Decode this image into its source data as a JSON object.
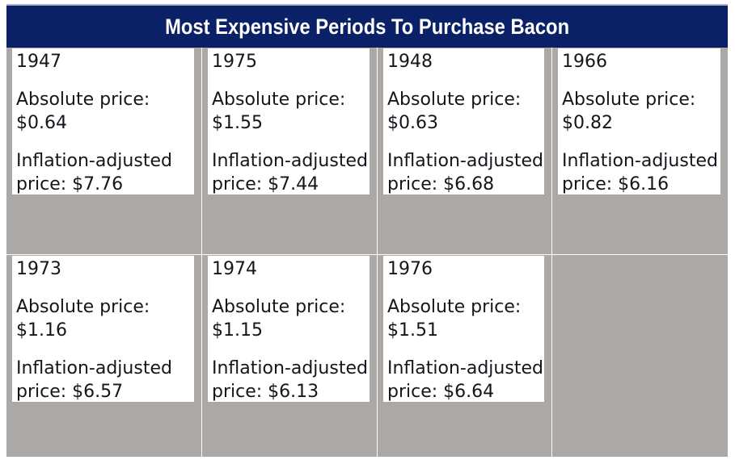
{
  "title": "Most Expensive Periods To Purchase Bacon",
  "colors": {
    "header_bg": "#0a2167",
    "border_top": "#a9b1c4",
    "cell_bg": "#aba8a6",
    "card_bg": "#ffffff",
    "text": "#15151c",
    "title_text": "#ffffff"
  },
  "cards": [
    {
      "year": "1947",
      "abs_label": "Absolute price:",
      "abs_value": "$0.64",
      "inf_line1": "Inflation-adjusted",
      "inf_line2": "price: $7.76"
    },
    {
      "year": "1975",
      "abs_label": "Absolute price:",
      "abs_value": "$1.55",
      "inf_line1": "Inflation-adjusted",
      "inf_line2": "price: $7.44"
    },
    {
      "year": "1948",
      "abs_label": "Absolute price:",
      "abs_value": "$0.63",
      "inf_line1": "Inflation-adjusted",
      "inf_line2": "price: $6.68"
    },
    {
      "year": "1966",
      "abs_label": "Absolute price:",
      "abs_value": "$0.82",
      "inf_line1": "Inflation-adjusted",
      "inf_line2": "price: $6.16"
    },
    {
      "year": "1973",
      "abs_label": "Absolute price:",
      "abs_value": "$1.16",
      "inf_line1": "Inflation-adjusted",
      "inf_line2": "price: $6.57"
    },
    {
      "year": "1974",
      "abs_label": "Absolute price:",
      "abs_value": "$1.15",
      "inf_line1": "Inflation-adjusted",
      "inf_line2": "price: $6.13"
    },
    {
      "year": "1976",
      "abs_label": "Absolute price:",
      "abs_value": "$1.51",
      "inf_line1": "Inflation-adjusted",
      "inf_line2": "price: $6.64"
    }
  ],
  "empty_cells": 1,
  "chart_data": {
    "type": "table",
    "title": "Most Expensive Periods To Purchase Bacon",
    "categories": [
      "1947",
      "1975",
      "1948",
      "1966",
      "1973",
      "1974",
      "1976"
    ],
    "series": [
      {
        "name": "Absolute price ($)",
        "values": [
          0.64,
          1.55,
          0.63,
          0.82,
          1.16,
          1.15,
          1.51
        ]
      },
      {
        "name": "Inflation-adjusted price ($)",
        "values": [
          7.76,
          7.44,
          6.68,
          6.16,
          6.57,
          6.13,
          6.64
        ]
      }
    ],
    "layout": "4-column by 2-row card grid, last cell empty, dark navy title band on top"
  }
}
